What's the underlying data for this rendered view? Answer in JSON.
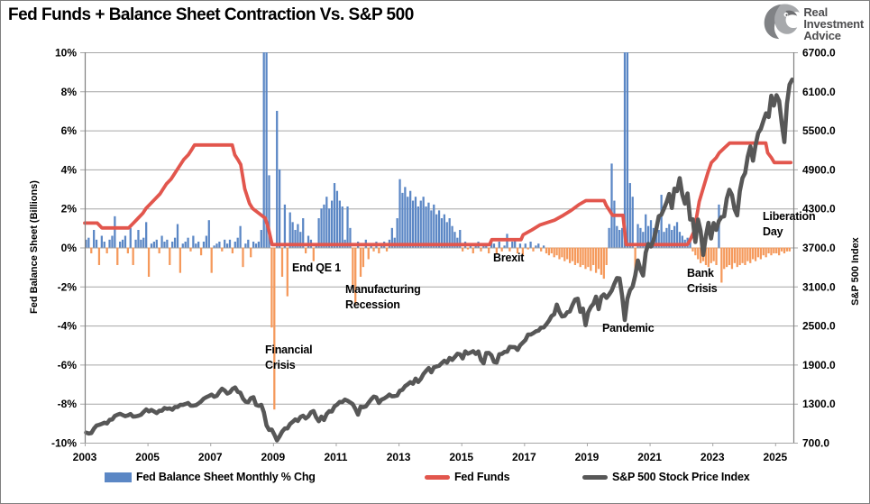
{
  "header": {
    "title": "Fed Funds + Balance Sheet Contraction Vs. S&P 500",
    "logo": {
      "line1": "Real",
      "line2": "Investment",
      "line3": "Advice"
    }
  },
  "chart_data": {
    "type": "combo-bar-line",
    "x_axis": {
      "domain": [
        2003.0,
        2025.58
      ],
      "ticks": [
        2003,
        2005,
        2007,
        2009,
        2011,
        2013,
        2015,
        2017,
        2019,
        2021,
        2023,
        2025
      ]
    },
    "left_axis": {
      "title": "Fed Balance Sheet (Billions)",
      "domain": [
        -10,
        10
      ],
      "ticks": [
        10,
        8,
        6,
        4,
        2,
        0,
        -2,
        -4,
        -6,
        -8,
        -10
      ],
      "format": "percent"
    },
    "right_axis": {
      "title": "S&P 500 Index",
      "domain": [
        700,
        6700
      ],
      "ticks": [
        6700,
        6100,
        5500,
        4900,
        4300,
        3700,
        3100,
        2500,
        1900,
        1300,
        700
      ],
      "format": "one-decimal"
    },
    "style": {
      "grid": "#a6a6a6",
      "axis": "#808080",
      "bar_clip": 10
    },
    "series": {
      "balance_sheet": {
        "name": "Fed Balance Sheet Monthly % Chg",
        "type": "bar",
        "axis": "left",
        "color_pos": "#5B87C5",
        "color_neg": "#F5995B",
        "start": 2003,
        "step_months": 1,
        "values": [
          0.4,
          0.5,
          -0.3,
          0.9,
          0.4,
          -0.9,
          0.6,
          0.3,
          -0.3,
          0.4,
          0.6,
          1.6,
          -0.9,
          0.3,
          0.4,
          0.6,
          -0.3,
          1.0,
          -0.9,
          0.4,
          0.9,
          0.4,
          0.5,
          1.3,
          -1.5,
          0.2,
          0.3,
          0.4,
          -0.3,
          0.6,
          0.3,
          0.4,
          -0.9,
          0.3,
          0.5,
          1.2,
          -1.3,
          0.2,
          0.3,
          0.5,
          -0.2,
          0.6,
          0.2,
          0.3,
          -0.4,
          0.3,
          0.6,
          1.4,
          -1.3,
          0.1,
          0.2,
          0.3,
          -0.2,
          0.4,
          0.2,
          0.4,
          -0.3,
          0.3,
          0.5,
          1.1,
          -1.0,
          0.2,
          0.4,
          -0.5,
          0.3,
          0.2,
          0.3,
          0.9,
          13.7,
          14.0,
          3.7,
          -4.1,
          -8.3,
          7.0,
          4.0,
          -1.5,
          2.2,
          -2.5,
          1.8,
          1.3,
          0.9,
          1.2,
          0.8,
          1.5,
          -0.3,
          0.6,
          0.4,
          -0.7,
          0.2,
          1.5,
          2.0,
          2.2,
          2.6,
          2.0,
          2.4,
          3.3,
          2.9,
          2.4,
          2.1,
          0.4,
          2.1,
          1.0,
          -2.0,
          -2.9,
          0.3,
          -1.5,
          -1.0,
          0.4,
          -0.6,
          0.2,
          -0.2,
          0.3,
          -0.3,
          0.2,
          0.3,
          -0.2,
          0.4,
          1.0,
          0.5,
          1.5,
          3.5,
          2.8,
          3.1,
          2.6,
          2.9,
          2.4,
          2.6,
          2.1,
          2.4,
          2.6,
          2.1,
          2.3,
          1.9,
          2.2,
          1.7,
          1.9,
          1.5,
          1.7,
          1.3,
          1.5,
          1.1,
          0.8,
          0.5,
          0.9,
          -0.2,
          0.3,
          -0.1,
          0.2,
          -0.3,
          0.2,
          0.3,
          -0.2,
          0.1,
          0.2,
          -0.3,
          0.4,
          0.2,
          -0.3,
          0.3,
          -0.2,
          0.1,
          0.7,
          -0.2,
          0.3,
          0.4,
          -0.3,
          0.2,
          -0.4,
          0.2,
          -0.1,
          0.3,
          -0.2,
          0.1,
          0.2,
          -0.2,
          0.1,
          -0.3,
          -0.4,
          -0.3,
          -0.5,
          -0.4,
          -0.6,
          -0.5,
          -0.7,
          -0.6,
          -0.8,
          -0.7,
          -0.9,
          -0.8,
          -1.0,
          -0.9,
          -1.1,
          -1.0,
          -1.2,
          -0.9,
          -1.3,
          -1.1,
          -1.4,
          -1.6,
          -0.9,
          1.0,
          4.3,
          2.4,
          1.1,
          0.9,
          1.0,
          13.7,
          10.5,
          3.3,
          2.6,
          -1.7,
          1.2,
          1.0,
          0.8,
          1.7,
          1.1,
          1.4,
          1.0,
          1.2,
          0.9,
          2.7,
          0.8,
          1.0,
          1.2,
          0.9,
          1.1,
          1.3,
          0.8,
          0.6,
          0.4,
          0.5,
          0.3,
          -0.2,
          -0.4,
          -0.6,
          -0.8,
          -0.7,
          -0.9,
          -1.0,
          -0.8,
          -0.7,
          -0.9,
          2.2,
          -1.8,
          -1.1,
          -1.0,
          -0.9,
          -1.1,
          -0.8,
          -1.0,
          -0.9,
          -0.8,
          -0.9,
          -0.7,
          -0.8,
          -0.6,
          -0.7,
          -0.5,
          -0.6,
          -0.4,
          -0.5,
          -0.3,
          -0.4,
          -0.3,
          -0.3,
          -0.4,
          -0.2,
          -0.3,
          -0.2,
          -0.2
        ]
      },
      "fed_funds": {
        "name": "Fed Funds",
        "type": "line",
        "axis": "left",
        "color": "#E2564D",
        "points": [
          [
            2003.0,
            1.25
          ],
          [
            2003.4,
            1.25
          ],
          [
            2003.55,
            1.0
          ],
          [
            2004.4,
            1.0
          ],
          [
            2004.55,
            1.25
          ],
          [
            2004.7,
            1.5
          ],
          [
            2004.85,
            1.75
          ],
          [
            2004.95,
            2.0
          ],
          [
            2005.1,
            2.25
          ],
          [
            2005.25,
            2.5
          ],
          [
            2005.4,
            2.75
          ],
          [
            2005.5,
            3.0
          ],
          [
            2005.6,
            3.25
          ],
          [
            2005.75,
            3.5
          ],
          [
            2005.85,
            3.75
          ],
          [
            2005.95,
            4.0
          ],
          [
            2006.05,
            4.25
          ],
          [
            2006.15,
            4.5
          ],
          [
            2006.3,
            4.75
          ],
          [
            2006.4,
            5.0
          ],
          [
            2006.5,
            5.25
          ],
          [
            2007.7,
            5.25
          ],
          [
            2007.78,
            4.75
          ],
          [
            2007.88,
            4.5
          ],
          [
            2007.97,
            4.25
          ],
          [
            2008.1,
            3.0
          ],
          [
            2008.25,
            2.25
          ],
          [
            2008.35,
            2.0
          ],
          [
            2008.75,
            1.5
          ],
          [
            2008.85,
            1.0
          ],
          [
            2008.97,
            0.15
          ],
          [
            2015.9,
            0.15
          ],
          [
            2015.97,
            0.4
          ],
          [
            2016.9,
            0.4
          ],
          [
            2016.97,
            0.65
          ],
          [
            2017.25,
            0.9
          ],
          [
            2017.5,
            1.15
          ],
          [
            2017.97,
            1.4
          ],
          [
            2018.25,
            1.65
          ],
          [
            2018.5,
            1.9
          ],
          [
            2018.75,
            2.2
          ],
          [
            2018.97,
            2.4
          ],
          [
            2019.55,
            2.4
          ],
          [
            2019.62,
            2.15
          ],
          [
            2019.72,
            1.9
          ],
          [
            2019.82,
            1.65
          ],
          [
            2020.15,
            1.65
          ],
          [
            2020.25,
            0.15
          ],
          [
            2022.2,
            0.15
          ],
          [
            2022.28,
            0.35
          ],
          [
            2022.42,
            0.85
          ],
          [
            2022.5,
            1.6
          ],
          [
            2022.58,
            2.35
          ],
          [
            2022.72,
            3.1
          ],
          [
            2022.86,
            3.85
          ],
          [
            2022.97,
            4.35
          ],
          [
            2023.12,
            4.6
          ],
          [
            2023.22,
            4.85
          ],
          [
            2023.38,
            5.1
          ],
          [
            2023.55,
            5.35
          ],
          [
            2024.7,
            5.35
          ],
          [
            2024.76,
            4.85
          ],
          [
            2024.88,
            4.6
          ],
          [
            2024.97,
            4.35
          ],
          [
            2025.5,
            4.35
          ]
        ]
      },
      "sp500": {
        "name": "S&P 500 Stock Price Index",
        "type": "line",
        "axis": "right",
        "color": "#575757",
        "start": 2003,
        "step_months": 1,
        "values": [
          855,
          841,
          848,
          916,
          963,
          974,
          990,
          1008,
          995,
          1050,
          1058,
          1111,
          1131,
          1144,
          1126,
          1107,
          1120,
          1140,
          1101,
          1104,
          1114,
          1130,
          1173,
          1211,
          1181,
          1203,
          1180,
          1156,
          1191,
          1191,
          1234,
          1220,
          1228,
          1207,
          1249,
          1248,
          1280,
          1280,
          1294,
          1310,
          1270,
          1270,
          1276,
          1303,
          1335,
          1377,
          1400,
          1418,
          1438,
          1406,
          1420,
          1482,
          1530,
          1503,
          1455,
          1473,
          1526,
          1549,
          1481,
          1468,
          1378,
          1330,
          1322,
          1385,
          1400,
          1280,
          1267,
          1282,
          1166,
          968,
          896,
          903,
          825,
          735,
          797,
          872,
          919,
          919,
          987,
          1020,
          1057,
          1036,
          1095,
          1115,
          1073,
          1104,
          1169,
          1186,
          1089,
          1030,
          1101,
          1049,
          1141,
          1183,
          1180,
          1257,
          1286,
          1327,
          1325,
          1363,
          1345,
          1320,
          1292,
          1218,
          1131,
          1253,
          1246,
          1257,
          1312,
          1365,
          1408,
          1397,
          1310,
          1362,
          1379,
          1406,
          1440,
          1412,
          1416,
          1426,
          1498,
          1514,
          1569,
          1597,
          1630,
          1606,
          1685,
          1632,
          1681,
          1756,
          1805,
          1848,
          1782,
          1859,
          1872,
          1883,
          1923,
          1960,
          1930,
          2003,
          1972,
          2018,
          2067,
          2058,
          1994,
          2104,
          2067,
          2085,
          2107,
          2063,
          2103,
          1972,
          1920,
          2079,
          2080,
          2043,
          1940,
          1932,
          2059,
          2065,
          2096,
          2098,
          2173,
          2170,
          2168,
          2126,
          2198,
          2238,
          2278,
          2363,
          2362,
          2384,
          2411,
          2423,
          2470,
          2471,
          2519,
          2575,
          2647,
          2673,
          2823,
          2713,
          2640,
          2648,
          2705,
          2718,
          2816,
          2901,
          2913,
          2711,
          2760,
          2506,
          2704,
          2784,
          2834,
          2945,
          2752,
          2941,
          2980,
          2926,
          2976,
          3037,
          3140,
          3230,
          3225,
          2954,
          2584,
          2912,
          3044,
          3100,
          3271,
          3500,
          3363,
          3269,
          3621,
          3756,
          3714,
          3811,
          3972,
          4181,
          4204,
          4297,
          4395,
          4522,
          4307,
          4605,
          4567,
          4766,
          4515,
          4373,
          4530,
          4131,
          4132,
          3785,
          4130,
          3955,
          3585,
          3871,
          4080,
          3839,
          4076,
          3970,
          4109,
          4169,
          4179,
          4450,
          4588,
          4507,
          4288,
          4193,
          4567,
          4769,
          4845,
          5096,
          5254,
          5035,
          5277,
          5460,
          5522,
          5648,
          5762,
          5705,
          6032,
          5881,
          6040,
          5954,
          5611,
          5320,
          5912,
          6205,
          6280
        ]
      }
    },
    "annotations": [
      {
        "text": "Financial\nCrisis",
        "x": 2008.75,
        "y": -5.2
      },
      {
        "text": "End QE 1",
        "x": 2009.6,
        "y": -1.0
      },
      {
        "text": "Manufacturing\nRecession",
        "x": 2011.3,
        "y": -2.1
      },
      {
        "text": "Brexit",
        "x": 2016.0,
        "y": -0.5
      },
      {
        "text": "Pandemic",
        "x": 2019.5,
        "y": -4.1
      },
      {
        "text": "Bank\nCrisis",
        "x": 2022.2,
        "y": -1.25
      },
      {
        "text": "Liberation\nDay",
        "x": 2024.6,
        "y": 1.65
      }
    ],
    "legend_position": "bottom"
  }
}
